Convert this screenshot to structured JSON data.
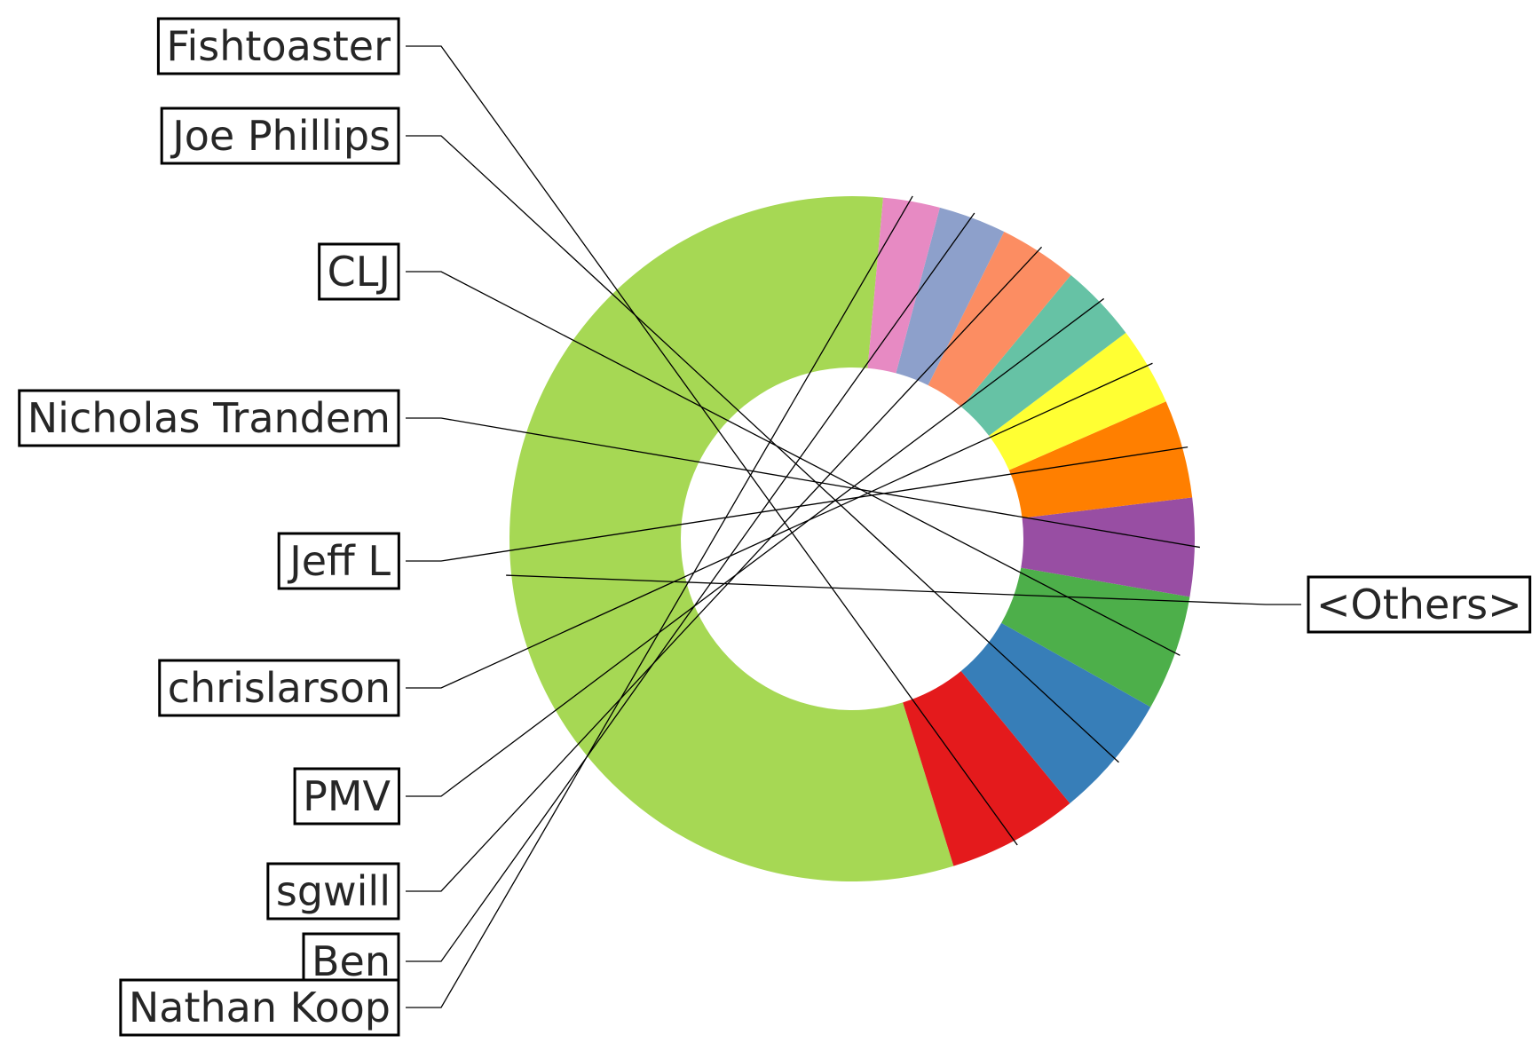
{
  "chart_data": {
    "type": "pie",
    "style": "donut",
    "categories": [
      "<Others>",
      "Fishtoaster",
      "Joe Phillips",
      "CLJ",
      "Nicholas Trandem",
      "Jeff L",
      "chrislarson",
      "PMV",
      "sgwill",
      "Ben",
      "Nathan Koop"
    ],
    "values": [
      54.6,
      6.0,
      5.7,
      5.3,
      4.5,
      4.5,
      3.6,
      3.6,
      3.6,
      3.1,
      2.6
    ],
    "colors": [
      "#a6d854",
      "#e41a1c",
      "#377eb8",
      "#4daf4a",
      "#984ea3",
      "#ff7f00",
      "#ffff33",
      "#66c2a5",
      "#fc8d62",
      "#8da0cb",
      "#e78ac3"
    ],
    "legend": "none",
    "title": ""
  }
}
